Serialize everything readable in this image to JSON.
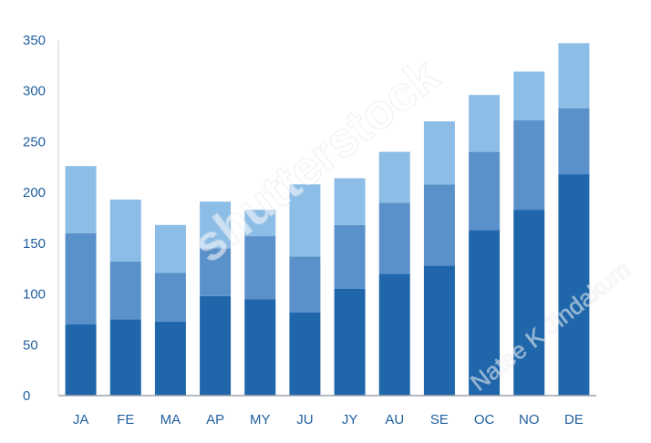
{
  "chart_data": {
    "type": "bar",
    "stacked": true,
    "categories": [
      "JA",
      "FE",
      "MA",
      "AP",
      "MY",
      "JU",
      "JY",
      "AU",
      "SE",
      "OC",
      "NO",
      "DE"
    ],
    "series": [
      {
        "color": "#1f66aa",
        "values": [
          70,
          75,
          73,
          98,
          95,
          82,
          105,
          120,
          128,
          163,
          183,
          218
        ]
      },
      {
        "color": "#5b91cb",
        "values": [
          90,
          57,
          48,
          47,
          62,
          55,
          63,
          70,
          80,
          77,
          88,
          65
        ]
      },
      {
        "color": "#8cbde6",
        "values": [
          66,
          61,
          47,
          46,
          26,
          71,
          46,
          50,
          62,
          56,
          48,
          64
        ]
      }
    ],
    "y_ticks": [
      "0",
      "50",
      "100",
      "150",
      "200",
      "250",
      "300",
      "350"
    ],
    "ylim": [
      0,
      350
    ],
    "grid": false,
    "legend": "none"
  },
  "watermark": {
    "text_1": "shutterstock",
    "text_2": "Natee K Jindakum"
  }
}
